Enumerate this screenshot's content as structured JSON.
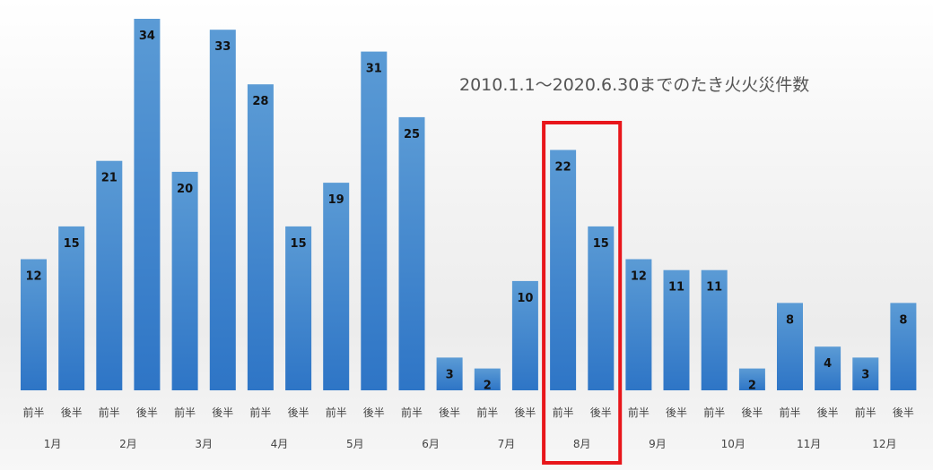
{
  "chart_data": {
    "type": "bar",
    "title": "2010.1.1～2020.6.30までのたき火火災件数",
    "categories": [
      "前半",
      "後半",
      "前半",
      "後半",
      "前半",
      "後半",
      "前半",
      "後半",
      "前半",
      "後半",
      "前半",
      "後半",
      "前半",
      "後半",
      "前半",
      "後半",
      "前半",
      "後半",
      "前半",
      "後半",
      "前半",
      "後半",
      "前半",
      "後半"
    ],
    "months": [
      "1月",
      "2月",
      "3月",
      "4月",
      "5月",
      "6月",
      "7月",
      "8月",
      "9月",
      "10月",
      "11月",
      "12月"
    ],
    "values": [
      12,
      15,
      21,
      34,
      20,
      33,
      28,
      15,
      19,
      31,
      25,
      3,
      2,
      10,
      22,
      15,
      12,
      11,
      11,
      2,
      8,
      4,
      3,
      8
    ],
    "ylim": [
      0,
      34
    ],
    "highlight_month": "8月",
    "colors": {
      "bar_top": "#5b9bd5",
      "bar_bottom": "#2e75c6",
      "highlight": "#e8161b"
    }
  }
}
